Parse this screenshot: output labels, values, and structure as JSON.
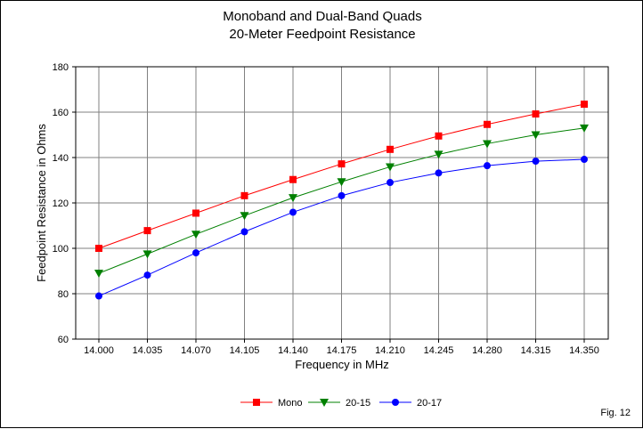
{
  "chart_data": {
    "type": "line",
    "title": "Monoband and Dual-Band Quads",
    "subtitle": "20-Meter Feedpoint Resistance",
    "xlabel": "Frequency in MHz",
    "ylabel": "Feedpoint Resistance in Ohms",
    "x": [
      "14.000",
      "14.035",
      "14.070",
      "14.105",
      "14.140",
      "14.175",
      "14.210",
      "14.245",
      "14.280",
      "14.315",
      "14.350"
    ],
    "ylim": [
      60,
      180
    ],
    "yticks": [
      "60",
      "80",
      "100",
      "120",
      "140",
      "160",
      "180"
    ],
    "grid": true,
    "legend_position": "bottom",
    "series": [
      {
        "name": "Mono",
        "color": "#ff0000",
        "marker": "square",
        "values": [
          100,
          107.8,
          115.5,
          123.2,
          130.3,
          137.2,
          143.6,
          149.5,
          154.6,
          159.2,
          163.5
        ]
      },
      {
        "name": "20-15",
        "color": "#008000",
        "marker": "triangle-down",
        "values": [
          89,
          97.5,
          106.2,
          114.4,
          122.3,
          129.3,
          135.9,
          141.4,
          146.1,
          150,
          153
        ]
      },
      {
        "name": "20-17",
        "color": "#0000ff",
        "marker": "circle",
        "values": [
          79,
          88.2,
          98,
          107.3,
          115.9,
          123.2,
          129,
          133.2,
          136.4,
          138.4,
          139.2
        ]
      }
    ]
  },
  "figure_label": "Fig. 12"
}
